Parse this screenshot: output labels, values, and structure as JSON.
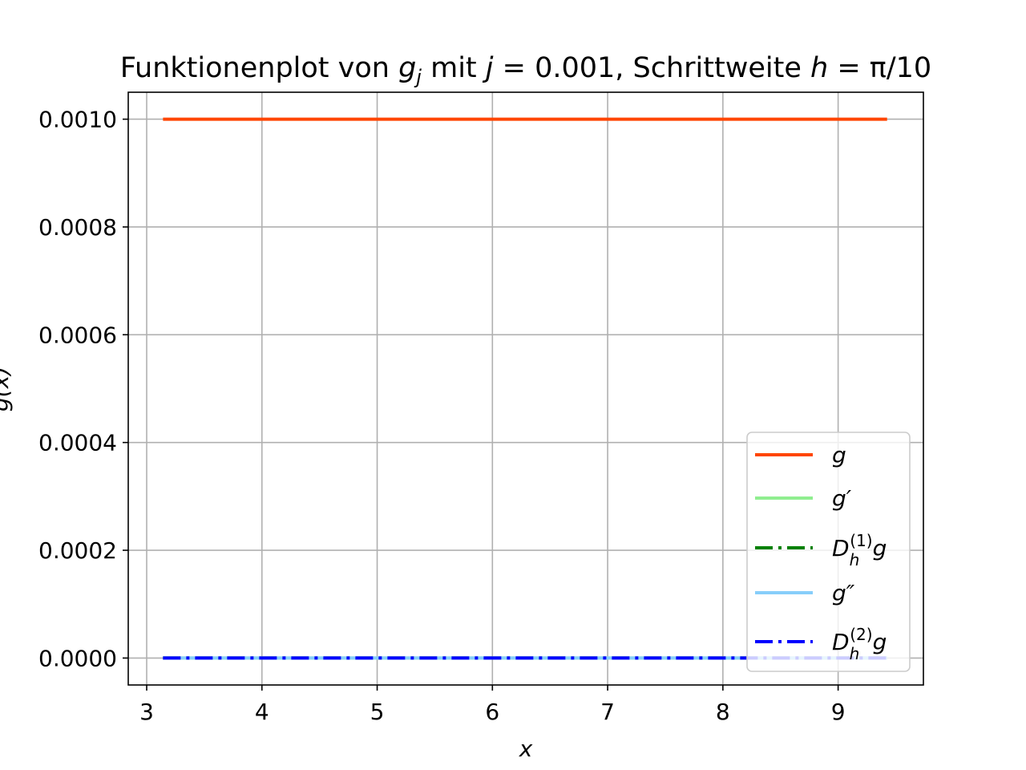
{
  "chart_data": {
    "type": "line",
    "title": "Funktionenplot von g_j mit j = 0.001, Schrittweite h = π/10",
    "title_parts": {
      "prefix": "Funktionenplot von ",
      "g": "g",
      "j_sub": "j",
      "mid": " mit ",
      "j": "j",
      "eq1": " = 0.001, Schrittweite ",
      "h": "h",
      "eq2": " = π/10"
    },
    "xlabel": "x",
    "ylabel": "g(x)",
    "xlim": [
      2.84,
      9.74
    ],
    "ylim": [
      -5e-05,
      0.00105
    ],
    "xticks": [
      "3",
      "4",
      "5",
      "6",
      "7",
      "8",
      "9"
    ],
    "yticks": [
      "0.0000",
      "0.0002",
      "0.0004",
      "0.0006",
      "0.0008",
      "0.0010"
    ],
    "grid": true,
    "legend_position": "lower right",
    "series": [
      {
        "name": "g",
        "color": "#ff4500",
        "style": "solid",
        "x": [
          3.1416,
          9.4248
        ],
        "y": [
          0.001,
          0.001
        ]
      },
      {
        "name": "g′",
        "color": "#90ee90",
        "style": "solid",
        "x": [
          3.1416,
          9.4248
        ],
        "y": [
          0,
          0
        ]
      },
      {
        "name": "D_h^(1) g",
        "color": "#008000",
        "style": "dashdot",
        "x": [
          3.1416,
          9.4248
        ],
        "y": [
          0,
          0
        ]
      },
      {
        "name": "g″",
        "color": "#87cefa",
        "style": "solid",
        "x": [
          3.1416,
          9.4248
        ],
        "y": [
          0,
          0
        ]
      },
      {
        "name": "D_h^(2) g",
        "color": "#0000ff",
        "style": "dashdot",
        "x": [
          3.1416,
          9.4248
        ],
        "y": [
          0,
          0
        ]
      }
    ],
    "legend": {
      "g": "g",
      "g_prime": "g′",
      "d1_D": "D",
      "d1_sub": "h",
      "d1_sup": "(1)",
      "d1_g": "g",
      "g_dprime": "g″",
      "d2_D": "D",
      "d2_sub": "h",
      "d2_sup": "(2)",
      "d2_g": "g"
    }
  }
}
